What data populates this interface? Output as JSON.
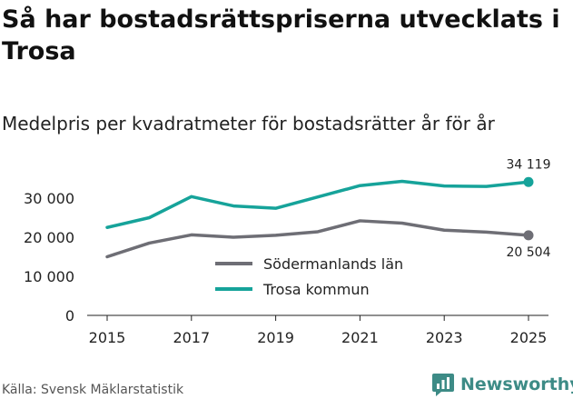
{
  "title": "Så har bostadsrättspriserna utvecklats i Trosa",
  "subtitle": "Medelpris per kvadratmeter för bostadsrätter år för år",
  "source": "Källa: Svensk Mäklarstatistik",
  "brand": {
    "name": "Newsworthy",
    "logo": "newsworthy-logo-icon",
    "color": "#3d8b86"
  },
  "chart_data": {
    "type": "line",
    "title": "Så har bostadsrättspriserna utvecklats i Trosa",
    "subtitle": "Medelpris per kvadratmeter för bostadsrätter år för år",
    "xlabel": "",
    "ylabel": "",
    "x": [
      2015,
      2016,
      2017,
      2018,
      2019,
      2020,
      2021,
      2022,
      2023,
      2024,
      2025
    ],
    "xticks": [
      2015,
      2017,
      2019,
      2021,
      2023,
      2025
    ],
    "xtick_labels": [
      "2015",
      "2017",
      "2019",
      "2021",
      "2023",
      "2025"
    ],
    "yticks": [
      0,
      10000,
      20000,
      30000
    ],
    "ytick_labels": [
      "0",
      "10 000",
      "20 000",
      "30 000"
    ],
    "xlim": [
      2014.5,
      2025.5
    ],
    "ylim": [
      0,
      36000
    ],
    "grid": false,
    "legend_position": "center",
    "series": [
      {
        "name": "Södermanlands län",
        "color": "#6e6e75",
        "values": [
          15000,
          18500,
          20600,
          20000,
          20500,
          21400,
          24200,
          23600,
          21800,
          21300,
          20504
        ],
        "end_label": "20 504"
      },
      {
        "name": "Trosa kommun",
        "color": "#16a39a",
        "values": [
          22500,
          25000,
          30400,
          28000,
          27400,
          30300,
          33200,
          34300,
          33100,
          33000,
          34119
        ],
        "end_label": "34 119"
      }
    ]
  }
}
